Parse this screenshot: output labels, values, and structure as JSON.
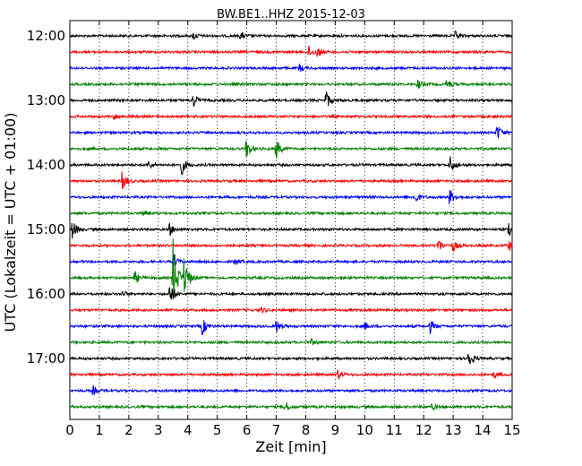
{
  "chart_data": {
    "type": "line",
    "title": "BW.BE1..HHZ 2015-12-03",
    "xlabel": "Zeit  [min]",
    "ylabel": "UTC (Lokalzeit = UTC + 01:00)",
    "xlim": [
      0,
      15
    ],
    "x_ticks": [
      "0",
      "1",
      "2",
      "3",
      "4",
      "5",
      "6",
      "7",
      "8",
      "9",
      "10",
      "11",
      "12",
      "13",
      "14",
      "15"
    ],
    "y_ticks": [
      "12:00",
      "13:00",
      "14:00",
      "15:00",
      "16:00",
      "17:00"
    ],
    "grid": "vertical dotted lines at each minute",
    "colors": [
      "#000000",
      "#ff0000",
      "#0000ff",
      "#008000"
    ],
    "traces": [
      {
        "start": "12:00",
        "events": [
          [
            4.2,
            4
          ],
          [
            5.8,
            4
          ],
          [
            13.1,
            4
          ]
        ]
      },
      {
        "start": "12:15",
        "events": [
          [
            8.1,
            6
          ],
          [
            8.4,
            5
          ]
        ]
      },
      {
        "start": "12:30",
        "events": [
          [
            7.8,
            4
          ]
        ]
      },
      {
        "start": "12:45",
        "events": [
          [
            11.8,
            5
          ],
          [
            12.8,
            5
          ]
        ]
      },
      {
        "start": "13:00",
        "events": [
          [
            4.2,
            7
          ],
          [
            8.7,
            10
          ]
        ]
      },
      {
        "start": "13:15",
        "events": [
          [
            1.5,
            3
          ]
        ]
      },
      {
        "start": "13:30",
        "events": [
          [
            14.5,
            9
          ]
        ]
      },
      {
        "start": "13:45",
        "events": [
          [
            6.0,
            10
          ],
          [
            7.0,
            11
          ]
        ]
      },
      {
        "start": "14:00",
        "events": [
          [
            3.8,
            10
          ],
          [
            12.9,
            10
          ],
          [
            2.7,
            4
          ]
        ]
      },
      {
        "start": "14:15",
        "events": [
          [
            1.8,
            10
          ]
        ]
      },
      {
        "start": "14:30",
        "events": [
          [
            11.7,
            7
          ],
          [
            12.9,
            8
          ]
        ]
      },
      {
        "start": "14:45",
        "events": [
          [
            2.5,
            3
          ]
        ]
      },
      {
        "start": "15:00",
        "events": [
          [
            0.1,
            10
          ],
          [
            3.4,
            6
          ],
          [
            14.9,
            10
          ]
        ]
      },
      {
        "start": "15:15",
        "events": [
          [
            12.5,
            7
          ],
          [
            13.0,
            6
          ],
          [
            14.9,
            6
          ]
        ]
      },
      {
        "start": "15:30",
        "events": [
          [
            3.5,
            8
          ],
          [
            5.6,
            3
          ]
        ]
      },
      {
        "start": "15:45",
        "events": [
          [
            2.2,
            7
          ],
          [
            3.5,
            45
          ],
          [
            3.9,
            20
          ]
        ]
      },
      {
        "start": "16:00",
        "events": [
          [
            3.4,
            12
          ],
          [
            1.8,
            3
          ]
        ]
      },
      {
        "start": "16:15",
        "events": [
          [
            6.5,
            3
          ]
        ]
      },
      {
        "start": "16:30",
        "events": [
          [
            4.5,
            9
          ],
          [
            7.0,
            7
          ],
          [
            10.0,
            4
          ],
          [
            12.2,
            8
          ]
        ]
      },
      {
        "start": "16:45",
        "events": [
          [
            8.2,
            3
          ]
        ]
      },
      {
        "start": "17:00",
        "events": [
          [
            13.5,
            12
          ]
        ]
      },
      {
        "start": "17:15",
        "events": [
          [
            9.1,
            5
          ],
          [
            14.4,
            3
          ]
        ]
      },
      {
        "start": "17:30",
        "events": [
          [
            0.8,
            4
          ]
        ]
      },
      {
        "start": "17:45",
        "events": [
          [
            7.3,
            6
          ],
          [
            12.3,
            3
          ]
        ]
      }
    ]
  }
}
